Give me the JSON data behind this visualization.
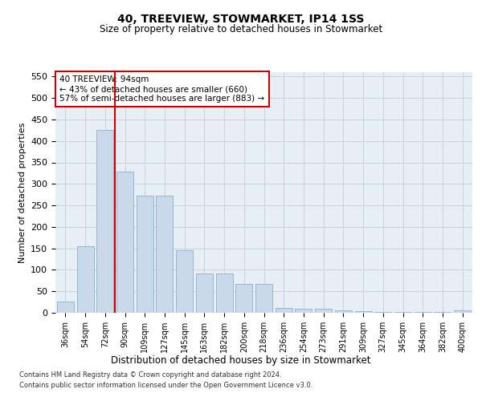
{
  "title": "40, TREEVIEW, STOWMARKET, IP14 1SS",
  "subtitle": "Size of property relative to detached houses in Stowmarket",
  "xlabel": "Distribution of detached houses by size in Stowmarket",
  "ylabel": "Number of detached properties",
  "categories": [
    "36sqm",
    "54sqm",
    "72sqm",
    "90sqm",
    "109sqm",
    "127sqm",
    "145sqm",
    "163sqm",
    "182sqm",
    "200sqm",
    "218sqm",
    "236sqm",
    "254sqm",
    "273sqm",
    "291sqm",
    "309sqm",
    "327sqm",
    "345sqm",
    "364sqm",
    "382sqm",
    "400sqm"
  ],
  "values": [
    27,
    155,
    425,
    328,
    272,
    272,
    146,
    91,
    91,
    68,
    68,
    12,
    10,
    10,
    5,
    3,
    2,
    2,
    1,
    1,
    5
  ],
  "bar_color": "#c9d9ea",
  "bar_edge_color": "#8ab0cc",
  "vline_x": 2.5,
  "vline_color": "#cc0000",
  "annotation_text": "40 TREEVIEW: 94sqm\n← 43% of detached houses are smaller (660)\n57% of semi-detached houses are larger (883) →",
  "annotation_box_color": "#ffffff",
  "annotation_box_edge": "#cc0000",
  "grid_color": "#c8d4e0",
  "background_color": "#e8eef6",
  "ylim": [
    0,
    560
  ],
  "yticks": [
    0,
    50,
    100,
    150,
    200,
    250,
    300,
    350,
    400,
    450,
    500,
    550
  ],
  "footer_line1": "Contains HM Land Registry data © Crown copyright and database right 2024.",
  "footer_line2": "Contains public sector information licensed under the Open Government Licence v3.0."
}
